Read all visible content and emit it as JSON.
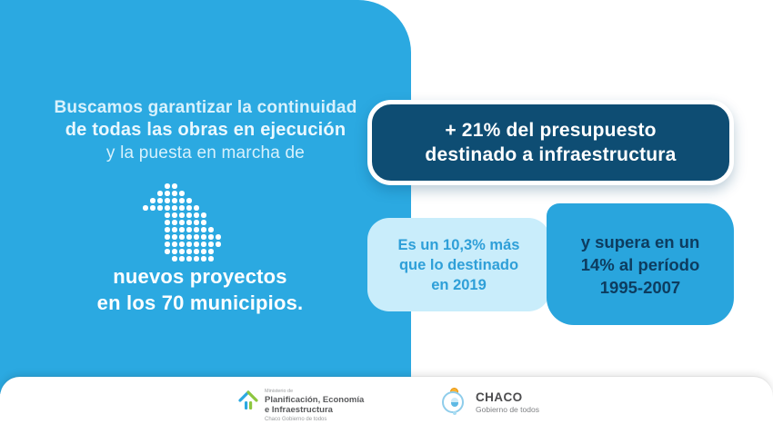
{
  "left_panel": {
    "intro": {
      "line1": "Buscamos garantizar la continuidad",
      "line2": "de todas las obras en ejecución",
      "line3": "y la puesta en marcha de"
    },
    "map_matrix": [
      "...XX......",
      "..XXXX.....",
      ".XXXXXX....",
      "XXXXXXXX...",
      "...XXXXXX..",
      "...XXXXXX..",
      "...XXXXXXX.",
      "...XXXXXXXX",
      "...XXXXXXXX",
      "...XXXXXXX.",
      "....XXXXXX."
    ],
    "highlight": {
      "line1": "nuevos proyectos",
      "line2": "en los 70 municipios."
    }
  },
  "stat_main": {
    "line1": "+ 21% del presupuesto",
    "line2": "destinado a infraestructura"
  },
  "box_light": {
    "l1_a": "Es un ",
    "l1_b": "10,3%",
    "l1_c": " más",
    "l2": "que lo destinado",
    "l3_a": "en ",
    "l3_b": "2019"
  },
  "box_blue": {
    "l1": "y supera en un",
    "l2_a": "14%",
    "l2_b": " al período",
    "l3": "1995-2007"
  },
  "footer": {
    "ministry": {
      "overline": "Ministerio de",
      "name_line1": "Planificación, Economía",
      "name_line2": "e Infraestructura",
      "tagline": "Chaco Gobierno de todos"
    },
    "chaco": {
      "name": "CHACO",
      "tagline": "Gobierno de todos"
    }
  },
  "colors": {
    "panel_blue": "#2BA9E1",
    "navy": "#0E4D73",
    "light_blue_box": "#C9EDFB",
    "medium_blue_box": "#29A5DD",
    "text_on_light_box": "#2E9FD8",
    "navy_text": "#0D3C5F",
    "logo_green": "#8DC63F",
    "logo_blue": "#2BA9E1",
    "sun_yellow": "#F9B233"
  }
}
